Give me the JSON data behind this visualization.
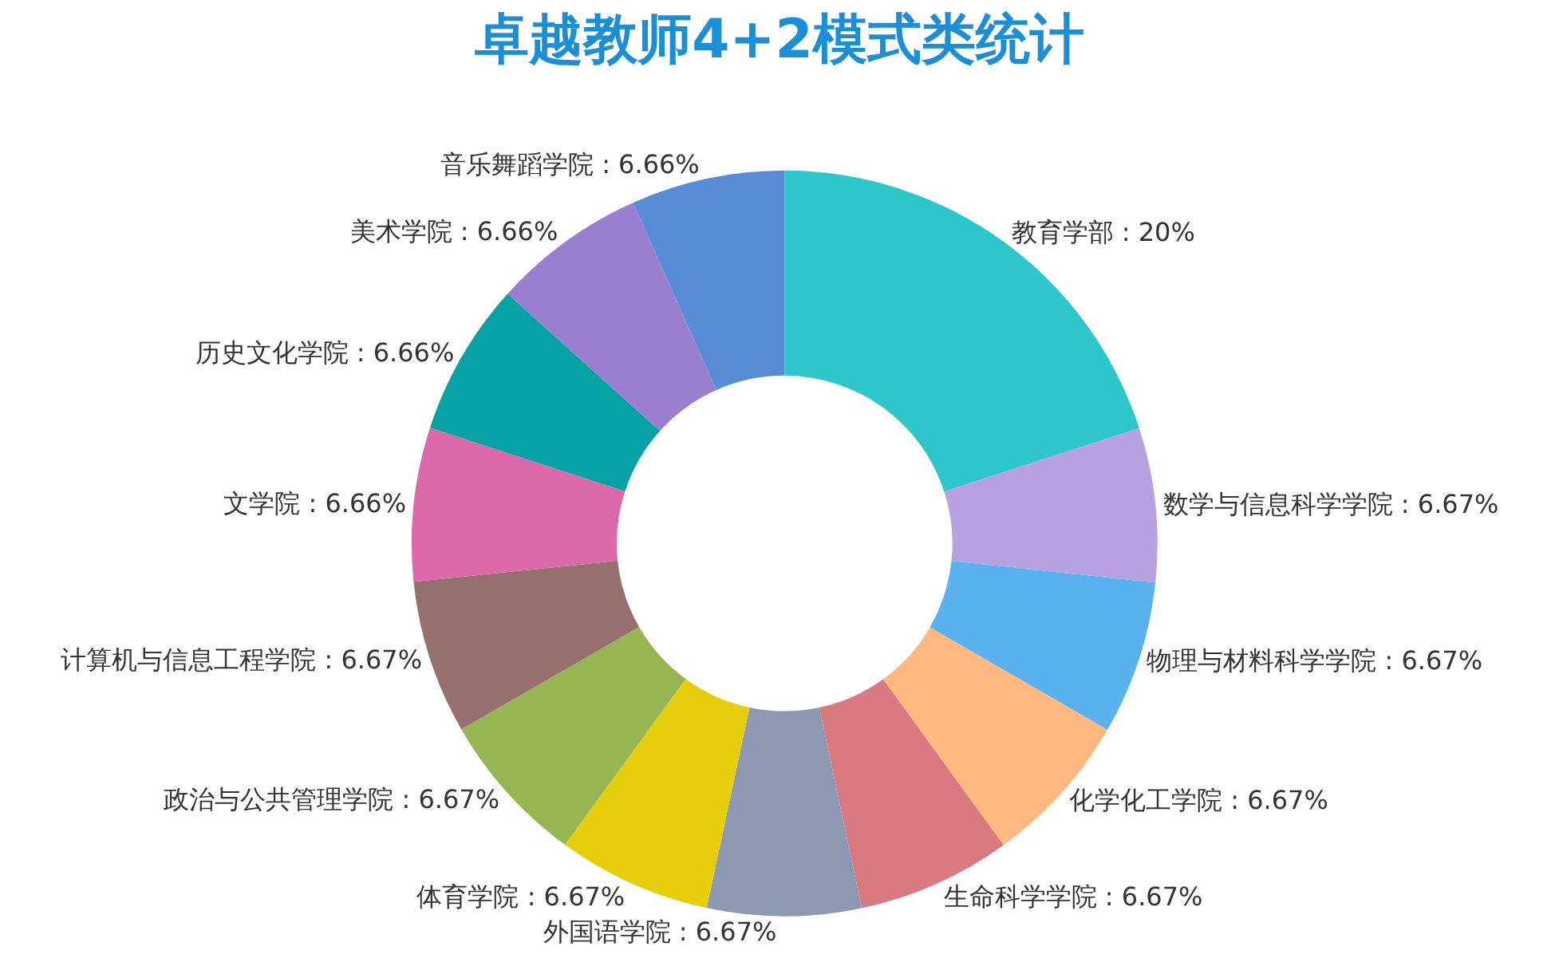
{
  "chart_data": {
    "type": "donut",
    "title": "卓越教师4+2模式类统计",
    "categories": [
      "教育学部",
      "数学与信息科学学院",
      "物理与材料科学学院",
      "化学化工学院",
      "生命科学学院",
      "外国语学院",
      "体育学院",
      "政治与公共管理学院",
      "计算机与信息工程学院",
      "文学院",
      "历史文化学院",
      "美术学院",
      "音乐舞蹈学院"
    ],
    "values": [
      20,
      6.67,
      6.67,
      6.67,
      6.67,
      6.67,
      6.67,
      6.67,
      6.67,
      6.66,
      6.66,
      6.66,
      6.66
    ],
    "colors": [
      "#2ec7c9",
      "#b6a2de",
      "#5ab1ef",
      "#ffb980",
      "#d87a80",
      "#8d98b3",
      "#e5cf0d",
      "#97b552",
      "#95706d",
      "#dc69aa",
      "#07a2a4",
      "#9a7fd1",
      "#588dd5"
    ],
    "value_labels": [
      ": 20%",
      ": 6.67%",
      ": 6.67%",
      ": 6.67%",
      ": 6.67%",
      ": 6.67%",
      ": 6.67%",
      ": 6.67%",
      ": 6.67%",
      ": 6.66%",
      ": 6.66%",
      ": 6.66%",
      ": 6.66%"
    ],
    "legend": false
  }
}
